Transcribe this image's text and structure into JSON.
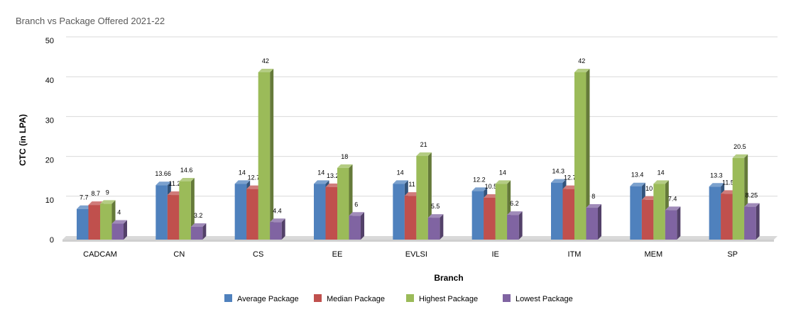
{
  "colors": {
    "average": "#4f81bd",
    "median": "#c0504d",
    "highest": "#9bbb59",
    "lowest": "#8064a2"
  },
  "chart_data": {
    "type": "bar",
    "title": "Branch vs Package Offered 2021-22",
    "xlabel": "Branch",
    "ylabel": "CTC (in LPA)",
    "ylim": [
      0,
      50
    ],
    "yticks": [
      0,
      10,
      20,
      30,
      40,
      50
    ],
    "grid": true,
    "legend_position": "bottom",
    "categories": [
      "CADCAM",
      "CN",
      "CS",
      "EE",
      "EVLSI",
      "IE",
      "ITM",
      "MEM",
      "SP"
    ],
    "series": [
      {
        "name": "Average Package",
        "color_key": "average",
        "values": [
          7.7,
          13.66,
          14,
          14,
          14,
          12.2,
          14.3,
          13.4,
          13.3
        ],
        "labels": [
          "7.7",
          "13.66",
          "14",
          "14",
          "14",
          "12.2",
          "14.3",
          "13.4",
          "13.3"
        ]
      },
      {
        "name": "Median Package",
        "color_key": "median",
        "values": [
          8.7,
          11.2,
          12.7,
          13.2,
          11,
          10.5,
          12.7,
          10,
          11.5
        ],
        "labels": [
          "8.7",
          "11.2",
          "12.7",
          "13.2",
          "11",
          "10.5",
          "12.7",
          "10",
          "11.5"
        ]
      },
      {
        "name": "Highest Package",
        "color_key": "highest",
        "values": [
          9,
          14.6,
          42,
          18,
          21,
          14,
          42,
          14,
          20.5
        ],
        "labels": [
          "9",
          "14.6",
          "42",
          "18",
          "21",
          "14",
          "42",
          "14",
          "20.5"
        ]
      },
      {
        "name": "Lowest Package",
        "color_key": "lowest",
        "values": [
          4,
          3.2,
          4.4,
          6,
          5.5,
          6.2,
          8,
          7.4,
          8.25
        ],
        "labels": [
          "4",
          "3.2",
          "4.4",
          "6",
          "5.5",
          "6.2",
          "8",
          "7.4",
          "8.25"
        ]
      }
    ]
  }
}
